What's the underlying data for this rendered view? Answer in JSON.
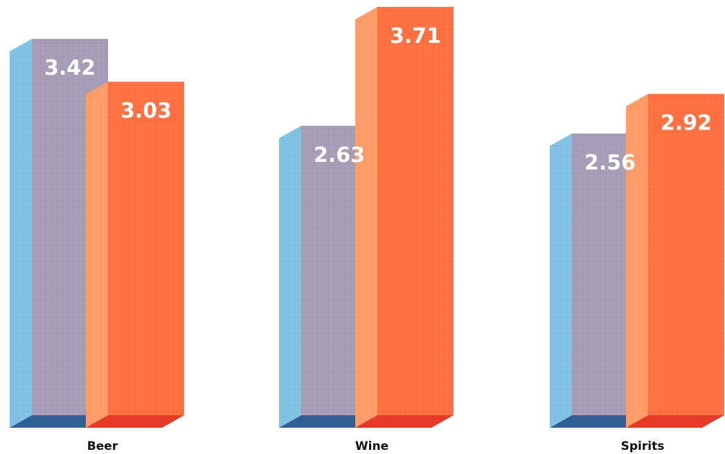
{
  "chart_data": {
    "type": "bar",
    "categories": [
      "Beer",
      "Wine",
      "Spirits"
    ],
    "series": [
      {
        "values": [
          3.42,
          2.63,
          2.56
        ],
        "color": "#a49bb5",
        "side_color": "#7fc1e3",
        "base_color": "#2f5f94"
      },
      {
        "values": [
          3.03,
          3.71,
          2.92
        ],
        "color": "#ff6e3e",
        "side_color": "#ff9a66",
        "base_color": "#e53a28"
      }
    ],
    "title": "",
    "xlabel": "",
    "ylabel": "",
    "ylim": [
      0,
      3.71
    ],
    "grid": false,
    "legend": "none",
    "style": "3d-bars-with-value-labels"
  }
}
